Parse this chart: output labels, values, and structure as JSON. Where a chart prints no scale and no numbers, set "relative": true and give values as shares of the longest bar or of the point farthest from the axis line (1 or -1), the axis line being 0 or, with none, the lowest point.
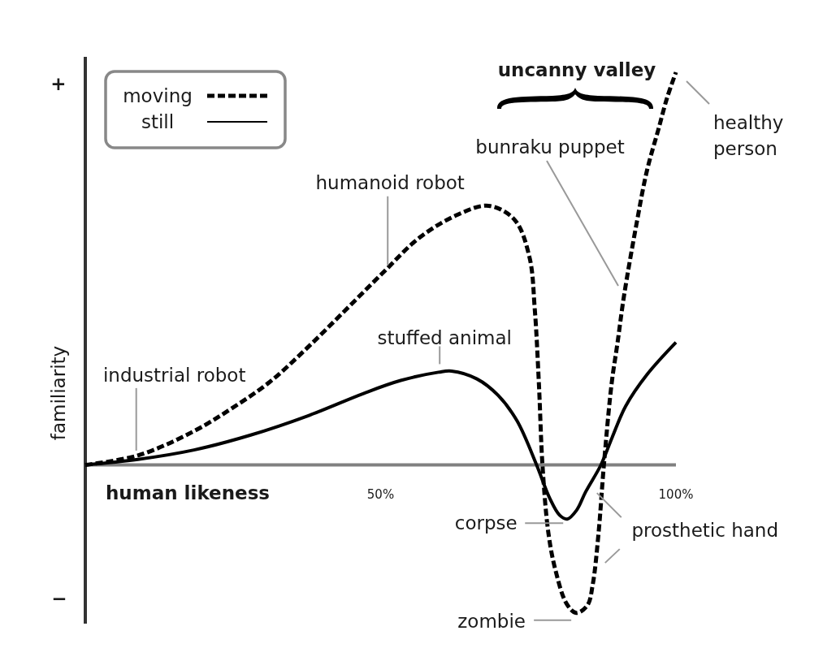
{
  "chart_data": {
    "type": "line",
    "xlabel": "human likeness",
    "ylabel": "familiarity",
    "relative": true,
    "xlim": [
      0,
      100
    ],
    "xticks": [
      {
        "value": 50,
        "label": "50%"
      },
      {
        "value": 100,
        "label": "100%"
      }
    ],
    "legend": "top left",
    "series": [
      {
        "name": "moving",
        "color": "#000000",
        "line_style": "dashed",
        "x": [
          0,
          8.9,
          18.4,
          24.8,
          31.2,
          37.5,
          43.9,
          50.3,
          56.6,
          63.0,
          68.3,
          72.7,
          75.2,
          76.1,
          76.8,
          77.4,
          78.4,
          79.6,
          81.5,
          83.1,
          85.0,
          85.9,
          86.9,
          87.8,
          89.1,
          90.1,
          91.2,
          93.3,
          95.1,
          97.0,
          98.5,
          100
        ],
        "values": [
          0,
          0.024,
          0.086,
          0.144,
          0.211,
          0.297,
          0.392,
          0.488,
          0.579,
          0.637,
          0.66,
          0.624,
          0.529,
          0.396,
          0.206,
          0,
          -0.173,
          -0.268,
          -0.354,
          -0.377,
          -0.358,
          -0.306,
          -0.173,
          0,
          0.206,
          0.31,
          0.43,
          0.612,
          0.75,
          0.853,
          0.935,
          1.0
        ]
      },
      {
        "name": "still",
        "color": "#000000",
        "line_style": "solid",
        "x": [
          0,
          8.9,
          18.4,
          28.0,
          37.5,
          47.1,
          53.4,
          59.8,
          62.0,
          66.3,
          69.9,
          73.1,
          76.4,
          78.6,
          80.3,
          81.6,
          83.2,
          84.7,
          87.3,
          89.2,
          91.5,
          95.1,
          100
        ],
        "values": [
          0,
          0.014,
          0.038,
          0.076,
          0.124,
          0.182,
          0.215,
          0.236,
          0.239,
          0.219,
          0.177,
          0.112,
          0,
          -0.084,
          -0.128,
          -0.138,
          -0.115,
          -0.069,
          0,
          0.07,
          0.15,
          0.23,
          0.312
        ]
      }
    ],
    "annotations": [
      "+",
      "uncanny valley",
      {
        "text": "healthy person",
        "x": 100,
        "y": 1.0
      },
      "bunraku puppet",
      {
        "text": "humanoid robot",
        "x": 51.2,
        "y": 0.5
      },
      {
        "text": "stuffed animal",
        "x": 60,
        "y": 0.236
      },
      {
        "text": "industrial robot",
        "x": 8.9,
        "y": 0.024
      },
      {
        "text": "corpse",
        "x": 81.6,
        "y": -0.138
      },
      {
        "text": "prosthetic hand",
        "x": 86.9,
        "y": -0.173
      },
      "−",
      {
        "text": "zombie",
        "x": 83.1,
        "y": -0.377
      }
    ]
  }
}
